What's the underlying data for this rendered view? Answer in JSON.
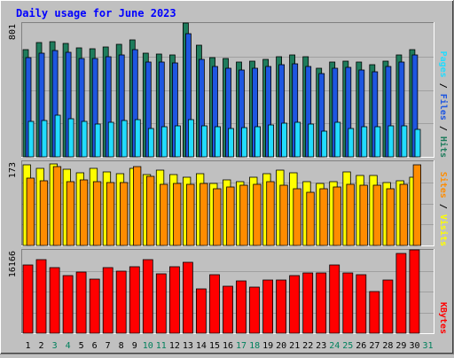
{
  "chart_data": {
    "type": "bar",
    "title": "Daily usage for June 2023",
    "days": [
      "1",
      "2",
      "3",
      "4",
      "5",
      "6",
      "7",
      "8",
      "9",
      "10",
      "11",
      "12",
      "13",
      "14",
      "15",
      "16",
      "17",
      "18",
      "19",
      "20",
      "21",
      "22",
      "23",
      "24",
      "25",
      "26",
      "27",
      "28",
      "29",
      "30",
      "31"
    ],
    "weekend_days": [
      "3",
      "4",
      "10",
      "11",
      "17",
      "18",
      "24",
      "25",
      "31"
    ],
    "panels": [
      {
        "name": "hits_files_pages",
        "scale_label": "801",
        "ylim": [
          0,
          801
        ],
        "right_labels": [
          "Pages",
          "/",
          "Files",
          "/",
          "Hits"
        ],
        "series": [
          {
            "name": "Hits",
            "color": "#1e7c5c",
            "values": [
              640,
              685,
              690,
              680,
              650,
              645,
              660,
              675,
              700,
              620,
              615,
              612,
              801,
              670,
              595,
              590,
              570,
              575,
              585,
              602,
              608,
              602,
              532,
              565,
              573,
              569,
              552,
              575,
              610,
              642,
              null
            ]
          },
          {
            "name": "Files",
            "color": "#1e56e0",
            "values": [
              595,
              622,
              634,
              626,
              588,
              590,
              602,
              610,
              640,
              570,
              565,
              560,
              735,
              585,
              540,
              530,
              520,
              530,
              540,
              550,
              555,
              540,
              500,
              530,
              535,
              520,
              510,
              540,
              570,
              612,
              null
            ]
          },
          {
            "name": "Pages",
            "color": "#22dcff",
            "values": [
              212,
              217,
              249,
              228,
              214,
              197,
              205,
              217,
              224,
              168,
              180,
              187,
              221,
              184,
              181,
              168,
              176,
              178,
              193,
              203,
              207,
              197,
              156,
              208,
              168,
              179,
              182,
              184,
              185,
              167,
              null
            ]
          }
        ]
      },
      {
        "name": "visits_sites",
        "scale_label": "173",
        "ylim": [
          0,
          173
        ],
        "right_labels": [
          "Sites",
          "/",
          "Visits"
        ],
        "series": [
          {
            "name": "Visits",
            "color": "#ffff00",
            "values": [
              165,
              158,
              168,
              156,
              150,
              158,
              152,
              148,
              158,
              145,
              155,
              145,
              140,
              147,
              128,
              135,
              132,
              140,
              148,
              155,
              150,
              131,
              128,
              131,
              152,
              143,
              143,
              129,
              133,
              140,
              null
            ]
          },
          {
            "name": "Sites",
            "color": "#ff8c00",
            "values": [
              138,
              133,
              162,
              132,
              135,
              132,
              129,
              130,
              162,
              142,
              126,
              127,
              126,
              128,
              117,
              121,
              124,
              125,
              132,
              123,
              116,
              110,
              117,
              120,
              125,
              124,
              124,
              117,
              125,
              165,
              null
            ]
          }
        ]
      },
      {
        "name": "kbytes",
        "scale_label": "16166",
        "ylim": [
          0,
          16166
        ],
        "right_labels": [
          "KBytes"
        ],
        "series": [
          {
            "name": "KBytes",
            "color": "#ff0000",
            "values": [
              13200,
              14200,
              12800,
              11200,
              11800,
              10500,
              12700,
              12100,
              12900,
              14300,
              11600,
              12900,
              13700,
              8600,
              11300,
              9100,
              10100,
              9000,
              10300,
              10400,
              11100,
              11700,
              11700,
              13200,
              11700,
              11300,
              8100,
              10300,
              15500,
              16166,
              null
            ]
          }
        ]
      }
    ]
  },
  "colors": {
    "title": "#0000ff",
    "weekend_label": "#00805c",
    "weekday_label": "#000000",
    "background": "#c0c0c0",
    "gridline": "#a0a0a0"
  }
}
